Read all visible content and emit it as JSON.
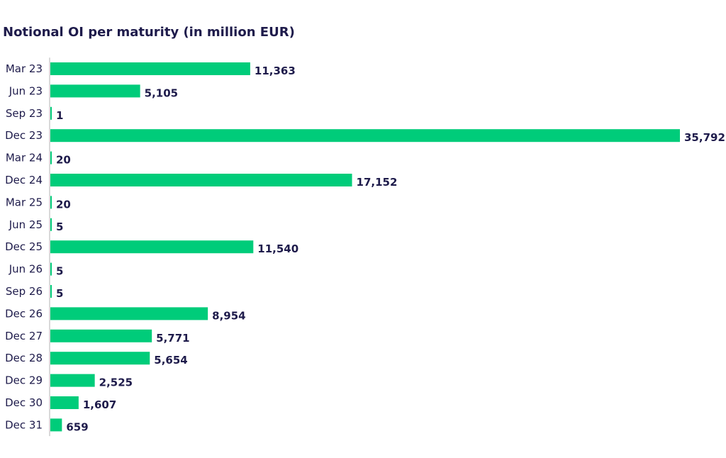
{
  "chart_data": {
    "type": "bar",
    "orientation": "horizontal",
    "title": "Notional OI per maturity (in million EUR)",
    "xlabel": "",
    "ylabel": "",
    "categories": [
      "Mar 23",
      "Jun 23",
      "Sep 23",
      "Dec 23",
      "Mar 24",
      "Dec 24",
      "Mar 25",
      "Jun 25",
      "Dec 25",
      "Jun 26",
      "Sep 26",
      "Dec 26",
      "Dec 27",
      "Dec 28",
      "Dec 29",
      "Dec 30",
      "Dec 31"
    ],
    "values": [
      11363,
      5105,
      1,
      35792,
      20,
      17152,
      20,
      5,
      11540,
      5,
      5,
      8954,
      5771,
      5654,
      2525,
      1607,
      659
    ],
    "value_labels": [
      "11,363",
      "5,105",
      "1",
      "35,792",
      "20",
      "17,152",
      "20",
      "5",
      "11,540",
      "5",
      "5",
      "8,954",
      "5,771",
      "5,654",
      "2,525",
      "1,607",
      "659"
    ],
    "xlim": [
      0,
      35792
    ],
    "grid": false,
    "legend": "none",
    "bar_color": "#00cc7a",
    "axis_color": "#d9d9d9",
    "text_color": "#1e1b4b"
  }
}
